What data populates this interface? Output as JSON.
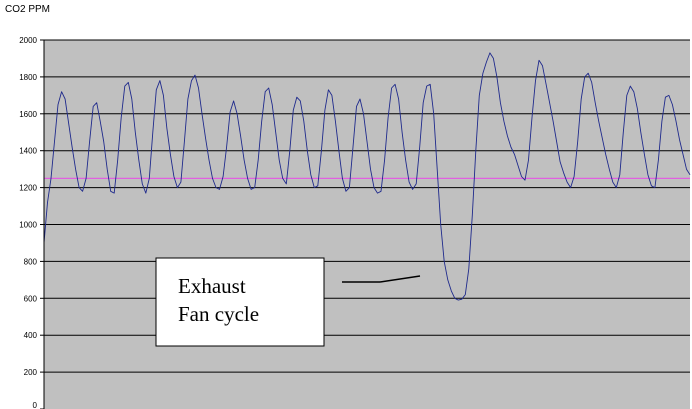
{
  "chart_data": {
    "type": "line",
    "ylabel": "CO2 PPM",
    "xlabel": "",
    "ylim": [
      0,
      2000
    ],
    "yticks": [
      0,
      200,
      400,
      600,
      800,
      1000,
      1200,
      1400,
      1600,
      1800,
      2000
    ],
    "grid": true,
    "plot_background": "#c0c0c0",
    "series": [
      {
        "color": "#1f2a8c",
        "points": [
          [
            0,
            900
          ],
          [
            2,
            1120
          ],
          [
            4,
            1250
          ],
          [
            6,
            1450
          ],
          [
            8,
            1650
          ],
          [
            10,
            1720
          ],
          [
            12,
            1680
          ],
          [
            14,
            1550
          ],
          [
            16,
            1420
          ],
          [
            18,
            1300
          ],
          [
            20,
            1200
          ],
          [
            22,
            1180
          ],
          [
            24,
            1250
          ],
          [
            26,
            1450
          ],
          [
            28,
            1640
          ],
          [
            30,
            1660
          ],
          [
            32,
            1560
          ],
          [
            34,
            1450
          ],
          [
            36,
            1300
          ],
          [
            38,
            1180
          ],
          [
            40,
            1170
          ],
          [
            42,
            1350
          ],
          [
            44,
            1580
          ],
          [
            46,
            1750
          ],
          [
            48,
            1770
          ],
          [
            50,
            1680
          ],
          [
            52,
            1500
          ],
          [
            54,
            1350
          ],
          [
            56,
            1220
          ],
          [
            58,
            1170
          ],
          [
            60,
            1250
          ],
          [
            62,
            1500
          ],
          [
            64,
            1730
          ],
          [
            66,
            1780
          ],
          [
            68,
            1700
          ],
          [
            70,
            1520
          ],
          [
            72,
            1380
          ],
          [
            74,
            1260
          ],
          [
            76,
            1200
          ],
          [
            78,
            1230
          ],
          [
            80,
            1450
          ],
          [
            82,
            1680
          ],
          [
            84,
            1780
          ],
          [
            86,
            1810
          ],
          [
            88,
            1740
          ],
          [
            90,
            1600
          ],
          [
            92,
            1470
          ],
          [
            94,
            1350
          ],
          [
            96,
            1250
          ],
          [
            98,
            1200
          ],
          [
            100,
            1190
          ],
          [
            102,
            1260
          ],
          [
            104,
            1420
          ],
          [
            106,
            1610
          ],
          [
            108,
            1670
          ],
          [
            110,
            1600
          ],
          [
            112,
            1480
          ],
          [
            114,
            1350
          ],
          [
            116,
            1250
          ],
          [
            118,
            1190
          ],
          [
            120,
            1200
          ],
          [
            122,
            1350
          ],
          [
            124,
            1560
          ],
          [
            126,
            1720
          ],
          [
            128,
            1740
          ],
          [
            130,
            1650
          ],
          [
            132,
            1500
          ],
          [
            134,
            1350
          ],
          [
            136,
            1250
          ],
          [
            138,
            1220
          ],
          [
            140,
            1400
          ],
          [
            142,
            1620
          ],
          [
            144,
            1690
          ],
          [
            146,
            1670
          ],
          [
            148,
            1560
          ],
          [
            150,
            1400
          ],
          [
            152,
            1270
          ],
          [
            154,
            1200
          ],
          [
            156,
            1210
          ],
          [
            158,
            1400
          ],
          [
            160,
            1620
          ],
          [
            162,
            1730
          ],
          [
            164,
            1700
          ],
          [
            166,
            1560
          ],
          [
            168,
            1400
          ],
          [
            170,
            1250
          ],
          [
            172,
            1180
          ],
          [
            174,
            1200
          ],
          [
            176,
            1420
          ],
          [
            178,
            1640
          ],
          [
            180,
            1680
          ],
          [
            182,
            1600
          ],
          [
            184,
            1450
          ],
          [
            186,
            1300
          ],
          [
            188,
            1200
          ],
          [
            190,
            1170
          ],
          [
            192,
            1180
          ],
          [
            194,
            1350
          ],
          [
            196,
            1580
          ],
          [
            198,
            1740
          ],
          [
            200,
            1760
          ],
          [
            202,
            1680
          ],
          [
            204,
            1500
          ],
          [
            206,
            1350
          ],
          [
            208,
            1230
          ],
          [
            210,
            1190
          ],
          [
            212,
            1220
          ],
          [
            214,
            1420
          ],
          [
            216,
            1660
          ],
          [
            218,
            1750
          ],
          [
            220,
            1760
          ],
          [
            222,
            1600
          ],
          [
            224,
            1300
          ],
          [
            226,
            1000
          ],
          [
            228,
            800
          ],
          [
            230,
            700
          ],
          [
            232,
            640
          ],
          [
            234,
            600
          ],
          [
            236,
            590
          ],
          [
            238,
            595
          ],
          [
            240,
            620
          ],
          [
            242,
            760
          ],
          [
            244,
            1050
          ],
          [
            246,
            1400
          ],
          [
            248,
            1700
          ],
          [
            250,
            1820
          ],
          [
            252,
            1880
          ],
          [
            254,
            1930
          ],
          [
            256,
            1900
          ],
          [
            258,
            1800
          ],
          [
            260,
            1660
          ],
          [
            262,
            1560
          ],
          [
            264,
            1480
          ],
          [
            266,
            1420
          ],
          [
            268,
            1380
          ],
          [
            270,
            1320
          ],
          [
            272,
            1260
          ],
          [
            274,
            1240
          ],
          [
            276,
            1350
          ],
          [
            278,
            1580
          ],
          [
            280,
            1780
          ],
          [
            282,
            1890
          ],
          [
            284,
            1860
          ],
          [
            286,
            1760
          ],
          [
            288,
            1660
          ],
          [
            290,
            1560
          ],
          [
            292,
            1450
          ],
          [
            294,
            1340
          ],
          [
            296,
            1280
          ],
          [
            298,
            1230
          ],
          [
            300,
            1200
          ],
          [
            302,
            1260
          ],
          [
            304,
            1450
          ],
          [
            306,
            1680
          ],
          [
            308,
            1800
          ],
          [
            310,
            1820
          ],
          [
            312,
            1770
          ],
          [
            314,
            1660
          ],
          [
            316,
            1560
          ],
          [
            318,
            1470
          ],
          [
            320,
            1380
          ],
          [
            322,
            1300
          ],
          [
            324,
            1230
          ],
          [
            326,
            1200
          ],
          [
            328,
            1270
          ],
          [
            330,
            1500
          ],
          [
            332,
            1700
          ],
          [
            334,
            1750
          ],
          [
            336,
            1720
          ],
          [
            338,
            1630
          ],
          [
            340,
            1500
          ],
          [
            342,
            1380
          ],
          [
            344,
            1270
          ],
          [
            346,
            1210
          ],
          [
            348,
            1200
          ],
          [
            350,
            1350
          ],
          [
            352,
            1560
          ],
          [
            354,
            1690
          ],
          [
            356,
            1700
          ],
          [
            358,
            1650
          ],
          [
            360,
            1560
          ],
          [
            362,
            1460
          ],
          [
            364,
            1380
          ],
          [
            366,
            1300
          ],
          [
            368,
            1270
          ]
        ]
      },
      {
        "color": "#e060e0",
        "points": [
          [
            0,
            1250
          ],
          [
            368,
            1250
          ]
        ]
      }
    ],
    "annotations": [
      {
        "text_lines": [
          "Exhaust",
          "Fan cycle"
        ]
      }
    ]
  }
}
